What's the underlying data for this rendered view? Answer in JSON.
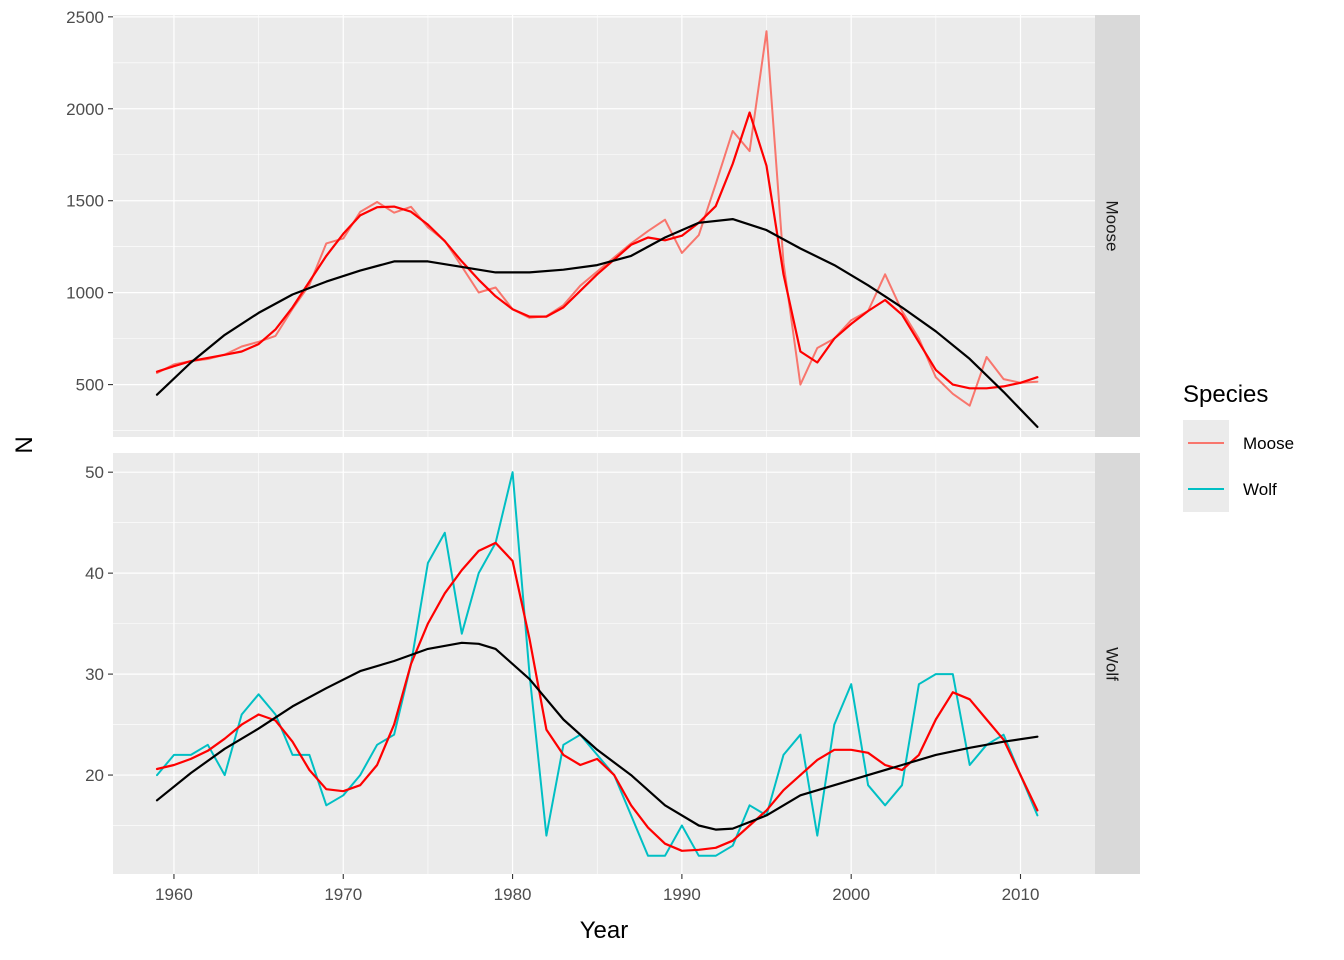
{
  "chart_data": {
    "type": "line",
    "xlabel": "Year",
    "ylabel": "N",
    "x_ticks": [
      1960,
      1970,
      1980,
      1990,
      2000,
      2010
    ],
    "xlim": [
      1956.4,
      2014.4
    ],
    "legend": {
      "title": "Species",
      "position": "right",
      "entries": [
        {
          "label": "Moose",
          "color": "#F8766D"
        },
        {
          "label": "Wolf",
          "color": "#00BFC4"
        }
      ]
    },
    "panels": [
      {
        "strip": "Moose",
        "ylim": [
          215,
          2510
        ],
        "y_ticks": [
          500,
          1000,
          1500,
          2000,
          2500
        ],
        "series": [
          {
            "name": "Moose",
            "role": "observed",
            "color": "#F8766D",
            "x": [
              1959,
              1960,
              1961,
              1962,
              1963,
              1964,
              1965,
              1966,
              1967,
              1968,
              1969,
              1970,
              1971,
              1972,
              1973,
              1974,
              1975,
              1976,
              1977,
              1978,
              1979,
              1980,
              1981,
              1982,
              1983,
              1984,
              1985,
              1986,
              1987,
              1988,
              1989,
              1990,
              1991,
              1992,
              1993,
              1994,
              1995,
              1996,
              1997,
              1998,
              1999,
              2000,
              2001,
              2002,
              2003,
              2004,
              2005,
              2006,
              2007,
              2008,
              2009,
              2010,
              2011
            ],
            "y": [
              563,
              610,
              628,
              639,
              663,
              707,
              733,
              765,
              912,
              1042,
              1268,
              1295,
              1439,
              1493,
              1435,
              1467,
              1355,
              1282,
              1143,
              1001,
              1028,
              910,
              863,
              872,
              932,
              1038,
              1115,
              1192,
              1268,
              1335,
              1397,
              1216,
              1313,
              1590,
              1879,
              1770,
              2422,
              1163,
              500,
              699,
              750,
              850,
              900,
              1100,
              900,
              750,
              540,
              450,
              385,
              650,
              530,
              510,
              515
            ]
          }
        ],
        "fits": [
          {
            "role": "local smooth (red)",
            "color": "#FF0000",
            "x": [
              1959,
              1960,
              1961,
              1962,
              1963,
              1964,
              1965,
              1966,
              1967,
              1968,
              1969,
              1970,
              1971,
              1972,
              1973,
              1974,
              1975,
              1976,
              1977,
              1978,
              1979,
              1980,
              1981,
              1982,
              1983,
              1984,
              1985,
              1986,
              1987,
              1988,
              1989,
              1990,
              1991,
              1992,
              1993,
              1994,
              1995,
              1996,
              1997,
              1998,
              1999,
              2000,
              2001,
              2002,
              2003,
              2004,
              2005,
              2006,
              2007,
              2008,
              2009,
              2010,
              2011
            ],
            "y": [
              570,
              600,
              628,
              645,
              662,
              680,
              720,
              800,
              920,
              1060,
              1200,
              1320,
              1420,
              1465,
              1468,
              1440,
              1370,
              1280,
              1170,
              1070,
              980,
              910,
              870,
              870,
              920,
              1010,
              1100,
              1180,
              1260,
              1300,
              1285,
              1310,
              1380,
              1470,
              1700,
              1980,
              1690,
              1100,
              680,
              620,
              750,
              830,
              900,
              960,
              880,
              730,
              580,
              500,
              480,
              480,
              490,
              510,
              540
            ]
          },
          {
            "role": "overall smooth (black)",
            "color": "#000000",
            "x": [
              1959,
              1961,
              1963,
              1965,
              1967,
              1969,
              1971,
              1973,
              1975,
              1977,
              1979,
              1981,
              1983,
              1985,
              1987,
              1989,
              1991,
              1993,
              1995,
              1997,
              1999,
              2001,
              2003,
              2005,
              2007,
              2009,
              2011
            ],
            "y": [
              445,
              620,
              770,
              890,
              990,
              1060,
              1120,
              1170,
              1170,
              1140,
              1110,
              1110,
              1125,
              1150,
              1200,
              1300,
              1380,
              1400,
              1340,
              1240,
              1150,
              1040,
              920,
              790,
              640,
              460,
              270
            ]
          }
        ]
      },
      {
        "strip": "Wolf",
        "ylim": [
          10.2,
          51.9
        ],
        "y_ticks": [
          20,
          30,
          40,
          50
        ],
        "series": [
          {
            "name": "Wolf",
            "role": "observed",
            "color": "#00BFC4",
            "x": [
              1959,
              1960,
              1961,
              1962,
              1963,
              1964,
              1965,
              1966,
              1967,
              1968,
              1969,
              1970,
              1971,
              1972,
              1973,
              1974,
              1975,
              1976,
              1977,
              1978,
              1979,
              1980,
              1981,
              1982,
              1983,
              1984,
              1985,
              1986,
              1987,
              1988,
              1989,
              1990,
              1991,
              1992,
              1993,
              1994,
              1995,
              1996,
              1997,
              1998,
              1999,
              2000,
              2001,
              2002,
              2003,
              2004,
              2005,
              2006,
              2007,
              2008,
              2009,
              2010,
              2011
            ],
            "y": [
              20,
              22,
              22,
              23,
              20,
              26,
              28,
              26,
              22,
              22,
              17,
              18,
              20,
              23,
              24,
              31,
              41,
              44,
              34,
              40,
              43,
              50,
              30,
              14,
              23,
              24,
              22,
              20,
              16,
              12,
              12,
              15,
              12,
              12,
              13,
              17,
              16,
              22,
              24,
              14,
              25,
              29,
              19,
              17,
              19,
              29,
              30,
              30,
              21,
              23,
              24,
              20,
              16
            ]
          }
        ],
        "fits": [
          {
            "role": "local smooth (red)",
            "color": "#FF0000",
            "x": [
              1959,
              1960,
              1961,
              1962,
              1963,
              1964,
              1965,
              1966,
              1967,
              1968,
              1969,
              1970,
              1971,
              1972,
              1973,
              1974,
              1975,
              1976,
              1977,
              1978,
              1979,
              1980,
              1981,
              1982,
              1983,
              1984,
              1985,
              1986,
              1987,
              1988,
              1989,
              1990,
              1991,
              1992,
              1993,
              1994,
              1995,
              1996,
              1997,
              1998,
              1999,
              2000,
              2001,
              2002,
              2003,
              2004,
              2005,
              2006,
              2007,
              2008,
              2009,
              2010,
              2011
            ],
            "y": [
              20.6,
              21,
              21.6,
              22.4,
              23.6,
              25,
              26,
              25.4,
              23.3,
              20.5,
              18.6,
              18.4,
              19,
              21,
              25,
              31,
              35,
              38,
              40.3,
              42.2,
              43,
              41.2,
              33.5,
              24.5,
              22,
              21,
              21.6,
              20,
              17,
              14.8,
              13.2,
              12.5,
              12.6,
              12.8,
              13.5,
              15,
              16.5,
              18.5,
              20,
              21.5,
              22.5,
              22.5,
              22.2,
              21,
              20.5,
              22,
              25.5,
              28.2,
              27.5,
              25.5,
              23.5,
              20,
              16.5
            ]
          },
          {
            "role": "overall smooth (black)",
            "color": "#000000",
            "x": [
              1959,
              1961,
              1963,
              1965,
              1967,
              1969,
              1971,
              1973,
              1975,
              1977,
              1978,
              1979,
              1981,
              1983,
              1985,
              1987,
              1989,
              1991,
              1992,
              1993,
              1995,
              1997,
              1999,
              2001,
              2003,
              2005,
              2007,
              2009,
              2011
            ],
            "y": [
              17.5,
              20.2,
              22.6,
              24.6,
              26.8,
              28.6,
              30.3,
              31.3,
              32.5,
              33.1,
              33.0,
              32.5,
              29.5,
              25.5,
              22.5,
              20,
              17,
              15,
              14.6,
              14.7,
              16,
              18,
              19,
              20,
              21,
              22,
              22.7,
              23.3,
              23.8
            ]
          }
        ]
      }
    ]
  }
}
